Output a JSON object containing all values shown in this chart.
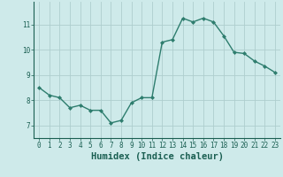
{
  "xlabel": "Humidex (Indice chaleur)",
  "x_values": [
    0,
    1,
    2,
    3,
    4,
    5,
    6,
    7,
    8,
    9,
    10,
    11,
    12,
    13,
    14,
    15,
    16,
    17,
    18,
    19,
    20,
    21,
    22,
    23
  ],
  "y_values": [
    8.5,
    8.2,
    8.1,
    7.7,
    7.8,
    7.6,
    7.6,
    7.1,
    7.2,
    7.9,
    8.1,
    8.1,
    10.3,
    10.4,
    11.25,
    11.1,
    11.25,
    11.1,
    10.55,
    9.9,
    9.85,
    9.55,
    9.35,
    9.1
  ],
  "line_color": "#2e7d6e",
  "marker": "D",
  "marker_size": 2.0,
  "line_width": 1.0,
  "background_color": "#ceeaea",
  "grid_color": "#aecece",
  "ylim": [
    6.5,
    11.9
  ],
  "yticks": [
    7,
    8,
    9,
    10,
    11
  ],
  "xticks": [
    0,
    1,
    2,
    3,
    4,
    5,
    6,
    7,
    8,
    9,
    10,
    11,
    12,
    13,
    14,
    15,
    16,
    17,
    18,
    19,
    20,
    21,
    22,
    23
  ],
  "tick_label_fontsize": 5.5,
  "xlabel_fontsize": 7.5,
  "text_color": "#1a5f52"
}
